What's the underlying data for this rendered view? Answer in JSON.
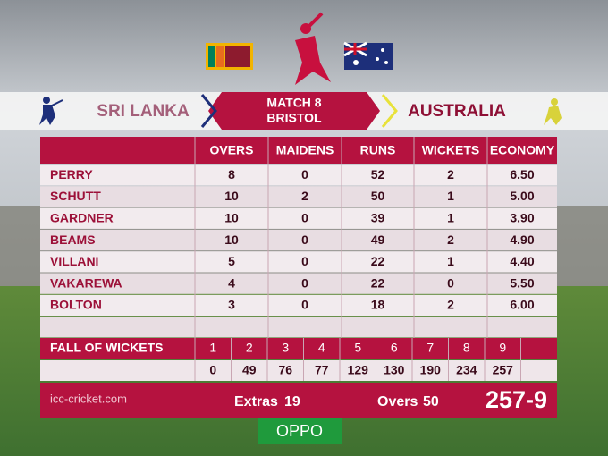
{
  "header": {
    "team1": "SRI LANKA",
    "match": "MATCH 8",
    "venue": "BRISTOL",
    "team2": "AUSTRALIA"
  },
  "table": {
    "columns": [
      "OVERS",
      "MAIDENS",
      "RUNS",
      "WICKETS",
      "ECONOMY"
    ],
    "rows": [
      [
        "PERRY",
        8,
        0,
        52,
        2,
        "6.50"
      ],
      [
        "SCHUTT",
        10,
        2,
        50,
        1,
        "5.00"
      ],
      [
        "GARDNER",
        10,
        0,
        39,
        1,
        "3.90"
      ],
      [
        "BEAMS",
        10,
        0,
        49,
        2,
        "4.90"
      ],
      [
        "VILLANI",
        5,
        0,
        22,
        1,
        "4.40"
      ],
      [
        "VAKAREWA",
        4,
        0,
        22,
        0,
        "5.50"
      ],
      [
        "BOLTON",
        3,
        0,
        18,
        2,
        "6.00"
      ]
    ]
  },
  "fall_of_wickets": {
    "label": "FALL OF WICKETS",
    "wickets": [
      1,
      2,
      3,
      4,
      5,
      6,
      7,
      8,
      9
    ],
    "scores": [
      0,
      49,
      76,
      77,
      129,
      130,
      190,
      234,
      257
    ]
  },
  "footer": {
    "site": "icc-cricket.com",
    "extras_label": "Extras",
    "extras": 19,
    "overs_label": "Overs",
    "overs": 50,
    "total": "257-9"
  },
  "sponsor": "OPPO"
}
